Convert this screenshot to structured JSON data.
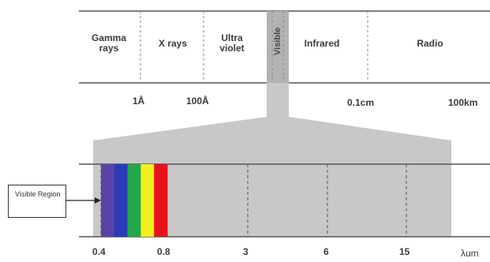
{
  "spectrum": {
    "bands": [
      "Gamma rays",
      "X rays",
      "Ultra violet",
      "Visible",
      "Infrared",
      "Radio"
    ],
    "wavelength_ticks": [
      "1Å",
      "100Å",
      "0.1cm",
      "100km"
    ]
  },
  "visible_zoom": {
    "colors": [
      "#5a43a8",
      "#2b3bb8",
      "#22a84a",
      "#f2ef1e",
      "#e8131a"
    ],
    "colored_region_ticks": [
      "0.4",
      "0.8"
    ],
    "axis_ticks": [
      "3",
      "6",
      "15"
    ],
    "unit": "λum",
    "callout": "Visible Region"
  }
}
